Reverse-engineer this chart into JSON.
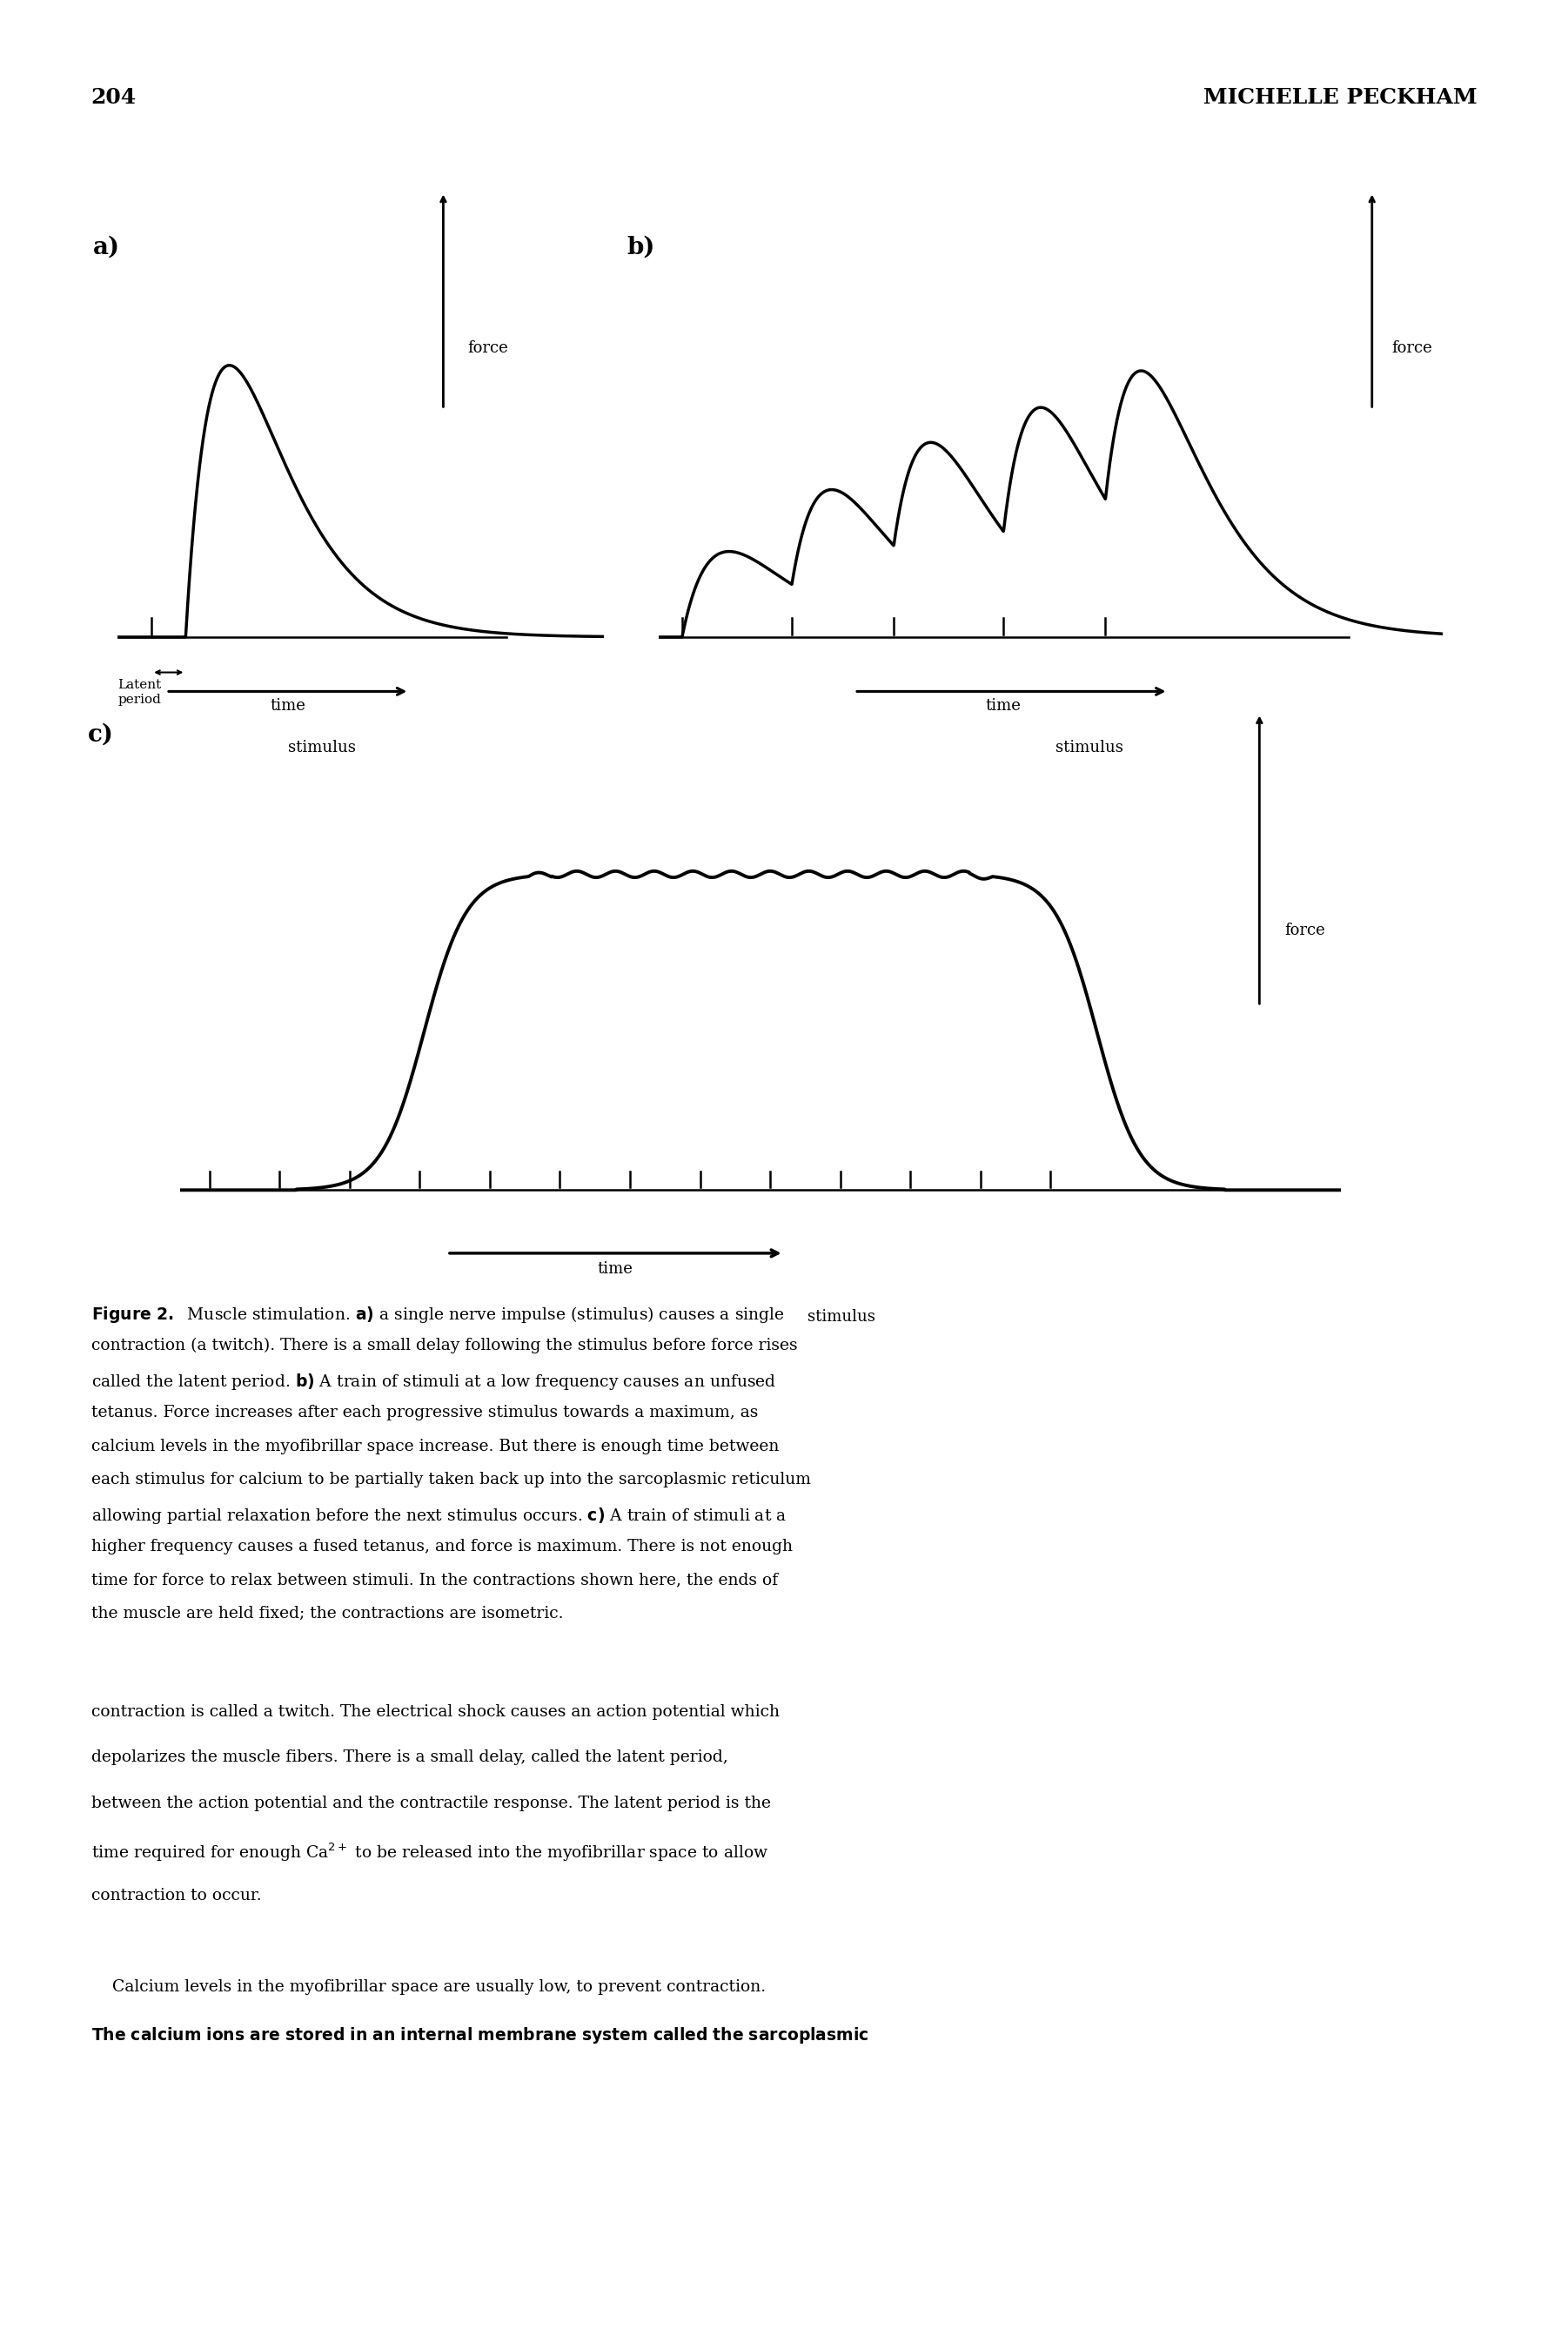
{
  "page_number": "204",
  "header_text": "MICHELLE PECKHAM",
  "background_color": "#ffffff",
  "line_color": "#000000",
  "panel_a_label": "a)",
  "panel_b_label": "b)",
  "panel_c_label": "c)",
  "force_label": "force",
  "stimulus_label": "stimulus",
  "time_label": "time",
  "latent_label": "Latent\nperiod",
  "caption_bold": "Figure 2.",
  "caption_a_bold": "a)",
  "caption_b_bold": "b)",
  "caption_c_bold": "c)",
  "caption_rest": "  Muscle stimulation. {a} a single nerve impulse (stimulus) causes a single contraction (a twitch). There is a small delay following the stimulus before force rises called the latent period. {b} A train of stimuli at a low frequency causes an unfused tetanus. Force increases after each progressive stimulus towards a maximum, as calcium levels in the myofibrillar space increase. But there is enough time between each stimulus for calcium to be partially taken back up into the sarcoplasmic reticulum allowing partial relaxation before the next stimulus occurs. {c} A train of stimuli at a higher frequency causes a fused tetanus, and force is maximum. There is not enough time for force to relax between stimuli. In the contractions shown here, the ends of the muscle are held fixed; the contractions are isometric.",
  "body1": "contraction is called a twitch. The electrical shock causes an action potential which depolarizes the muscle fibers. There is a small delay, called the latent period, between the action potential and the contractile response. The latent period is the time required for enough Ca2+ to be released into the myofibrillar space to allow contraction to occur.",
  "body2": "    Calcium levels in the myofibrillar space are usually low, to prevent contraction. The calcium ions are stored in an internal membrane system called the sarcoplasmic"
}
